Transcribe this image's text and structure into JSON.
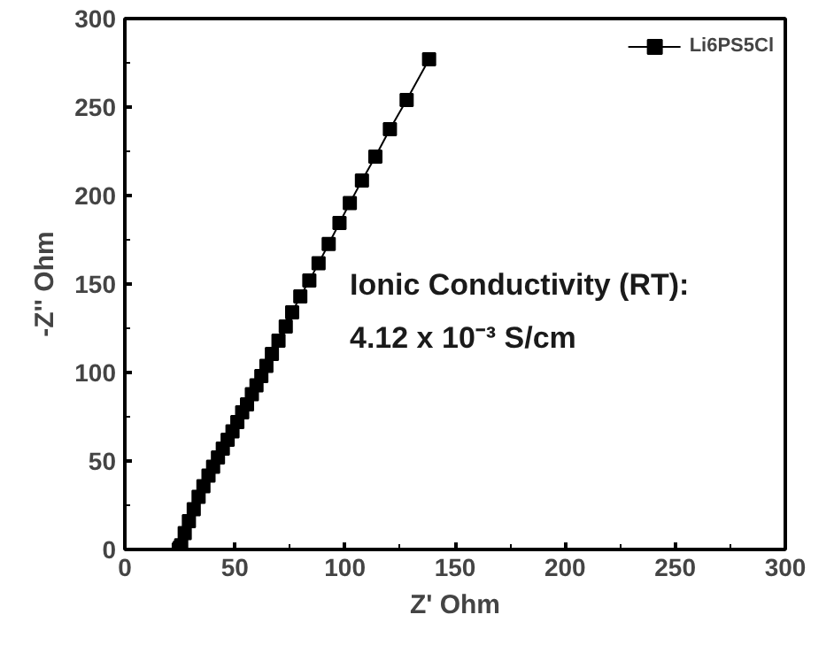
{
  "chart_data": {
    "type": "line",
    "xlabel": "Z' Ohm",
    "ylabel": "-Z'' Ohm",
    "x": [
      24.5,
      25,
      25.6,
      27.2,
      29.1,
      31.3,
      33.5,
      35.7,
      38,
      40.1,
      42.3,
      44.5,
      46.7,
      48.9,
      51.1,
      53.3,
      55.5,
      57.7,
      59.8,
      62,
      64.3,
      66.8,
      69.8,
      73.1,
      76,
      79.7,
      83.8,
      88,
      92.6,
      97.5,
      102.2,
      107.7,
      113.8,
      120.4,
      128,
      138.2
    ],
    "series": [
      {
        "name": "Li6PS5Cl",
        "color": "#000000",
        "values": [
          0,
          1,
          2.4,
          9.2,
          16,
          22.8,
          29.7,
          35.8,
          41.7,
          46.8,
          52,
          57,
          62,
          66.8,
          72,
          77.5,
          82,
          87.7,
          92.8,
          98,
          103.7,
          110.5,
          118,
          126,
          134,
          143,
          152,
          161.7,
          172.6,
          184.5,
          195.8,
          208.5,
          222,
          237.5,
          254,
          277
        ]
      }
    ],
    "xlim": [
      0,
      300
    ],
    "ylim": [
      0,
      300
    ],
    "xticks": [
      0,
      50,
      100,
      150,
      200,
      250,
      300
    ],
    "yticks": [
      0,
      50,
      100,
      150,
      200,
      250,
      300
    ],
    "marker": "square",
    "line_style": "solid",
    "grid": false,
    "legend": "top right",
    "annotations": [
      "Ionic Conductivity (RT):",
      "4.12 x 10⁻³ S/cm"
    ]
  }
}
